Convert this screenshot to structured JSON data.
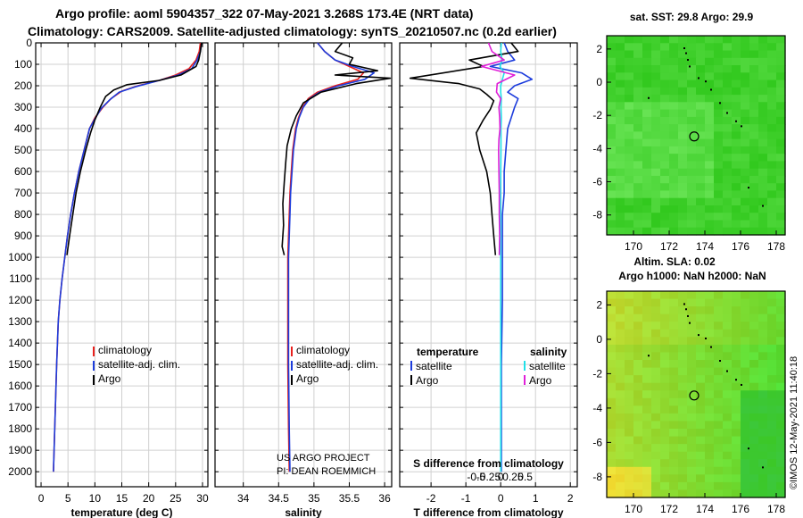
{
  "header": {
    "title_line1": "Argo profile: aoml 5904357_322 07-May-2021 3.268S 173.4E (NRT data)",
    "title_line2": "Climatology: CARS2009. Satellite-adjusted climatology: synTS_20210507.nc (0.2d earlier)"
  },
  "credit": {
    "project": "US ARGO PROJECT",
    "pi": "PI: DEAN ROEMMICH",
    "imos": "©IMOS 12-May-2021 11:40:18"
  },
  "colors": {
    "climatology": "#e8201c",
    "satellite": "#1c3cdc",
    "argo": "#000000",
    "argo_salinity": "#e020d8",
    "satellite_salinity": "#20e0e8",
    "sst_green": "#3ecf2a",
    "sla_yellow": "#b8e830"
  },
  "chart_data": [
    {
      "type": "line",
      "id": "temperature",
      "xlabel": "temperature (deg C)",
      "xlim": [
        -1,
        31
      ],
      "ylim": [
        2070,
        0
      ],
      "xticks": [
        "0",
        "5",
        "10",
        "15",
        "20",
        "25",
        "30"
      ],
      "xtick_values": [
        0,
        5,
        10,
        15,
        20,
        25,
        30
      ],
      "yticks": [
        "0",
        "100",
        "200",
        "300",
        "400",
        "500",
        "600",
        "700",
        "800",
        "900",
        "1000",
        "1100",
        "1200",
        "1300",
        "1400",
        "1500",
        "1600",
        "1700",
        "1800",
        "1900",
        "2000"
      ],
      "ytick_values": [
        0,
        100,
        200,
        300,
        400,
        500,
        600,
        700,
        800,
        900,
        1000,
        1100,
        1200,
        1300,
        1400,
        1500,
        1600,
        1700,
        1800,
        1900,
        2000
      ],
      "legend": [
        "climatology",
        "satellite-adj. clim.",
        "Argo"
      ],
      "series": [
        {
          "name": "climatology",
          "color": "#e8201c",
          "x": [
            29.6,
            29.4,
            28.8,
            27.5,
            25,
            22,
            18,
            15,
            13,
            11.5,
            10,
            9,
            8,
            7,
            6.2,
            5.5,
            4.9,
            4.4,
            3.9,
            3.5,
            3.2,
            2.9,
            2.6,
            2.3
          ],
          "y": [
            0,
            40,
            80,
            120,
            150,
            175,
            200,
            225,
            260,
            300,
            350,
            400,
            500,
            600,
            700,
            800,
            900,
            1000,
            1100,
            1200,
            1300,
            1500,
            1750,
            2000
          ]
        },
        {
          "name": "satellite-adj. clim.",
          "color": "#1c3cdc",
          "x": [
            29.8,
            29.6,
            29,
            28,
            25.5,
            22,
            17.5,
            14.5,
            12.8,
            11.2,
            10,
            9,
            8,
            7,
            6.2,
            5.5,
            4.9,
            4.4,
            3.9,
            3.5,
            3.2,
            2.9,
            2.6,
            2.3
          ],
          "y": [
            0,
            40,
            80,
            120,
            150,
            175,
            205,
            230,
            265,
            305,
            355,
            400,
            500,
            600,
            700,
            800,
            900,
            1000,
            1100,
            1200,
            1300,
            1500,
            1750,
            2000
          ]
        },
        {
          "name": "Argo",
          "color": "#000000",
          "x": [
            29.8,
            29.6,
            29.3,
            28.8,
            26,
            22,
            16,
            13.5,
            12,
            11,
            10,
            9.2,
            8.3,
            7.3,
            6.5,
            5.9,
            5.3,
            4.8
          ],
          "y": [
            0,
            40,
            80,
            110,
            150,
            175,
            195,
            220,
            250,
            300,
            360,
            420,
            500,
            600,
            700,
            800,
            900,
            990
          ]
        }
      ]
    },
    {
      "type": "line",
      "id": "salinity",
      "xlabel": "salinity",
      "xlim": [
        33.6,
        36.1
      ],
      "ylim": [
        2070,
        0
      ],
      "xticks": [
        "34",
        "34.5",
        "35",
        "35.5",
        "36"
      ],
      "xtick_values": [
        34,
        34.5,
        35,
        35.5,
        36
      ],
      "legend": [
        "climatology",
        "satellite-adj. clim.",
        "Argo"
      ],
      "series": [
        {
          "name": "climatology",
          "color": "#e8201c",
          "x": [
            35.05,
            35.15,
            35.3,
            35.5,
            35.7,
            35.62,
            35.3,
            35.05,
            34.92,
            34.84,
            34.78,
            34.74,
            34.7,
            34.68,
            34.66,
            34.65,
            34.64,
            34.63,
            34.63,
            34.63,
            34.64,
            34.65
          ],
          "y": [
            0,
            40,
            80,
            110,
            140,
            170,
            200,
            230,
            260,
            300,
            350,
            400,
            500,
            600,
            700,
            800,
            900,
            1000,
            1200,
            1500,
            1800,
            2000
          ]
        },
        {
          "name": "satellite-adj. clim.",
          "color": "#1c3cdc",
          "x": [
            35.05,
            35.15,
            35.3,
            35.55,
            35.85,
            35.72,
            35.35,
            35.08,
            34.94,
            34.85,
            34.79,
            34.75,
            34.71,
            34.69,
            34.67,
            34.66,
            34.65,
            34.64,
            34.64,
            34.64,
            34.65,
            34.66
          ],
          "y": [
            0,
            40,
            80,
            110,
            140,
            170,
            200,
            230,
            260,
            300,
            350,
            400,
            500,
            600,
            700,
            800,
            900,
            1000,
            1200,
            1500,
            1800,
            2000
          ]
        },
        {
          "name": "Argo",
          "color": "#000000",
          "x": [
            35.4,
            35.3,
            35.55,
            35.5,
            35.9,
            35.3,
            36.08,
            35.6,
            35.1,
            34.85,
            34.75,
            34.68,
            34.62,
            34.6,
            34.58,
            34.56,
            34.57,
            34.55,
            34.58
          ],
          "y": [
            0,
            40,
            70,
            100,
            130,
            150,
            165,
            190,
            230,
            280,
            340,
            400,
            480,
            560,
            650,
            750,
            850,
            950,
            990
          ]
        }
      ]
    },
    {
      "type": "line",
      "id": "difference",
      "xlabel": "T difference from climatology",
      "xlabel_top": "S difference from climatology",
      "xlim": [
        -2.9,
        2.2
      ],
      "ylim": [
        2070,
        0
      ],
      "xticks": [
        "-2",
        "-1",
        "0",
        "1",
        "2"
      ],
      "xtick_values": [
        -2,
        -1,
        0,
        1,
        2
      ],
      "s_xticks": [
        "-0.5",
        "-0.25",
        "0",
        "0.25",
        "0.5"
      ],
      "s_xtick_values": [
        -0.5,
        -0.25,
        0,
        0.25,
        0.5
      ],
      "legend_headers": [
        "temperature",
        "salinity"
      ],
      "legend_left": [
        "satellite",
        "Argo"
      ],
      "legend_right": [
        "satellite",
        "Argo"
      ],
      "series": [
        {
          "name": "T satellite",
          "color": "#1c3cdc",
          "x": [
            0.1,
            0.2,
            0.4,
            -0.3,
            0.6,
            0.9,
            0.4,
            0.2,
            0.5,
            0.4,
            0.3,
            0.2,
            0.15,
            0.1,
            0.1,
            0.05,
            0.05,
            0.05,
            0.05,
            0.02,
            0.02,
            0.02
          ],
          "y": [
            0,
            40,
            80,
            110,
            140,
            170,
            200,
            230,
            260,
            300,
            350,
            400,
            500,
            600,
            700,
            800,
            900,
            1000,
            1200,
            1500,
            1800,
            2000
          ]
        },
        {
          "name": "T Argo",
          "color": "#000000",
          "x": [
            0.3,
            0.5,
            -0.9,
            -0.5,
            -2.6,
            -1.2,
            -0.6,
            -0.4,
            -0.2,
            -0.3,
            -0.5,
            -0.7,
            -0.6,
            -0.4,
            -0.3,
            -0.25,
            -0.2,
            -0.15
          ],
          "y": [
            0,
            40,
            80,
            110,
            165,
            190,
            215,
            240,
            270,
            310,
            360,
            420,
            500,
            600,
            700,
            800,
            900,
            990
          ]
        },
        {
          "name": "S satellite",
          "color": "#20e0e8",
          "x": [
            0.02,
            0.0,
            0.04,
            -0.02,
            0.1,
            0.05,
            0.0,
            0.0,
            0.02,
            0.01,
            0.02,
            0.01,
            0.01,
            0.0,
            0.0,
            0.0,
            0.0,
            0.0,
            0.0,
            0.0,
            0.0,
            0.0
          ],
          "y": [
            0,
            40,
            80,
            110,
            140,
            170,
            200,
            230,
            260,
            300,
            350,
            400,
            500,
            600,
            700,
            800,
            900,
            1000,
            1200,
            1500,
            1800,
            2000
          ]
        },
        {
          "name": "S Argo",
          "color": "#e020d8",
          "x": [
            -0.35,
            -0.25,
            0.1,
            -0.55,
            0.4,
            -0.1,
            -0.12,
            0.0,
            -0.05,
            -0.03,
            -0.02,
            -0.05,
            -0.06,
            -0.05,
            -0.04,
            -0.04,
            -0.03,
            -0.04
          ],
          "y": [
            0,
            40,
            80,
            110,
            150,
            190,
            230,
            260,
            300,
            350,
            400,
            450,
            500,
            600,
            700,
            800,
            900,
            990
          ]
        }
      ]
    },
    {
      "type": "heatmap",
      "id": "sst_map",
      "title": "sat. SST: 29.8 Argo: 29.9",
      "xlim": [
        168.5,
        178.5
      ],
      "ylim": [
        -9.2,
        2.8
      ],
      "xticks": [
        "170",
        "172",
        "174",
        "176",
        "178"
      ],
      "xtick_values": [
        170,
        172,
        174,
        176,
        178
      ],
      "yticks": [
        "2",
        "0",
        "-2",
        "-4",
        "-6",
        "-8"
      ],
      "ytick_values": [
        2,
        0,
        -2,
        -4,
        -6,
        -8
      ],
      "float_position": {
        "lon": 173.4,
        "lat": -3.268
      }
    },
    {
      "type": "heatmap",
      "id": "sla_map",
      "title_line1": "Altim. SLA: 0.02",
      "title_line2": "Argo h1000: NaN h2000: NaN",
      "xlim": [
        168.5,
        178.5
      ],
      "ylim": [
        -9.2,
        2.8
      ],
      "xticks": [
        "170",
        "172",
        "174",
        "176",
        "178"
      ],
      "xtick_values": [
        170,
        172,
        174,
        176,
        178
      ],
      "yticks": [
        "2",
        "0",
        "-2",
        "-4",
        "-6",
        "-8"
      ],
      "ytick_values": [
        2,
        0,
        -2,
        -4,
        -6,
        -8
      ],
      "float_position": {
        "lon": 173.4,
        "lat": -3.268
      }
    }
  ]
}
